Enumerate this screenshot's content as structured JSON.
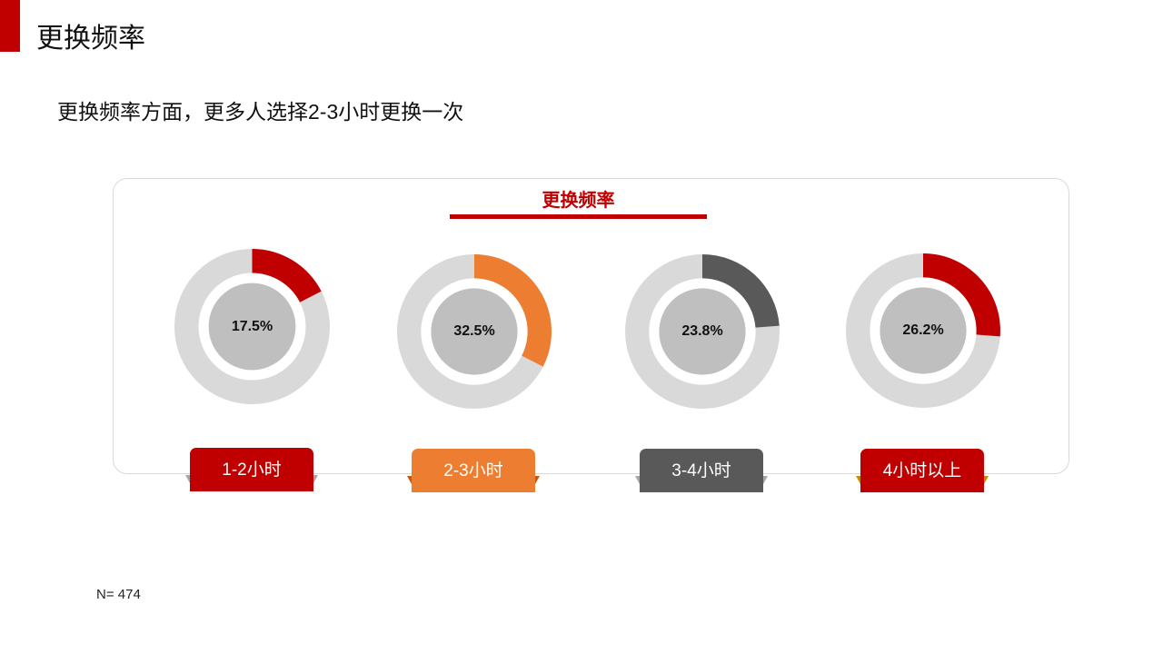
{
  "header": {
    "title": "更换频率"
  },
  "subtitle": "更换频率方面，更多人选择2-3小时更换一次",
  "chart_data": {
    "type": "donut",
    "title": "更换频率",
    "unit": "%",
    "series": [
      {
        "label": "1-2小时",
        "value": 17.5,
        "value_label": "17.5%",
        "color": "#c00000",
        "tab_color": "#c00000",
        "fold_color": "#a6a6a6"
      },
      {
        "label": "2-3小时",
        "value": 32.5,
        "value_label": "32.5%",
        "color": "#ed7d31",
        "tab_color": "#ed7d31",
        "fold_color": "#c55a11"
      },
      {
        "label": "3-4小时",
        "value": 23.8,
        "value_label": "23.8%",
        "color": "#595959",
        "tab_color": "#595959",
        "fold_color": "#a6a6a6"
      },
      {
        "label": "4小时以上",
        "value": 26.2,
        "value_label": "26.2%",
        "color": "#c00000",
        "tab_color": "#c00000",
        "fold_color": "#bf9000"
      }
    ],
    "ring_track_color": "#d9d9d9",
    "center_disc_color": "#bfbfbf"
  },
  "footnote": "N= 474"
}
